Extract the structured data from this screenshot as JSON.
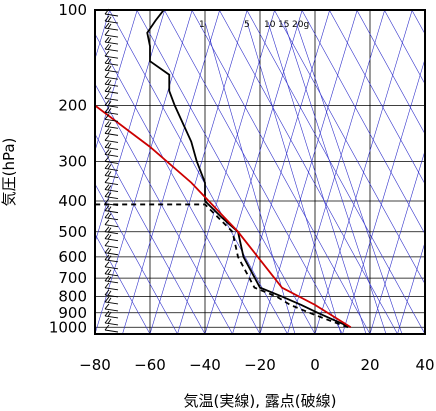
{
  "chart_data": {
    "type": "line",
    "title": "",
    "xlabel": "気温(実線), 露点(破線)",
    "ylabel": "気圧(hPa)",
    "xlim": [
      -80,
      40
    ],
    "ylim": [
      1050,
      100
    ],
    "y_scale": "log",
    "x_ticks": [
      -80,
      -60,
      -40,
      -20,
      0,
      20,
      40
    ],
    "y_ticks": [
      100,
      200,
      300,
      400,
      500,
      600,
      700,
      800,
      900,
      1000
    ],
    "grid": true,
    "mixing_ratio_labels": [
      "1",
      "5",
      "10",
      "15",
      "20g"
    ],
    "series": [
      {
        "style": "solid",
        "color": "#000000",
        "x": [
          13,
          7,
          1,
          -5,
          -12,
          -20,
          -26,
          -28,
          -34,
          -40,
          -40,
          -43,
          -45,
          -51,
          -53,
          -53,
          -60,
          -60,
          -61,
          -58,
          -55
        ],
        "y": [
          1000,
          950,
          900,
          850,
          800,
          750,
          600,
          500,
          450,
          400,
          350,
          300,
          260,
          200,
          180,
          160,
          145,
          130,
          118,
          108,
          100
        ]
      },
      {
        "style": "dashed",
        "color": "#000000",
        "x": [
          12,
          5,
          -2,
          -9,
          -14,
          -22,
          -28,
          -30,
          -40,
          -80
        ],
        "y": [
          1000,
          950,
          900,
          850,
          800,
          750,
          600,
          500,
          410,
          410
        ]
      },
      {
        "style": "solid",
        "color": "#cc0000",
        "x": [
          13,
          0,
          -12,
          -28,
          -45,
          -60,
          -80
        ],
        "y": [
          1000,
          850,
          750,
          500,
          350,
          270,
          200
        ]
      }
    ],
    "wind_barbs": {
      "count": 46,
      "x_position": "left margin"
    }
  }
}
